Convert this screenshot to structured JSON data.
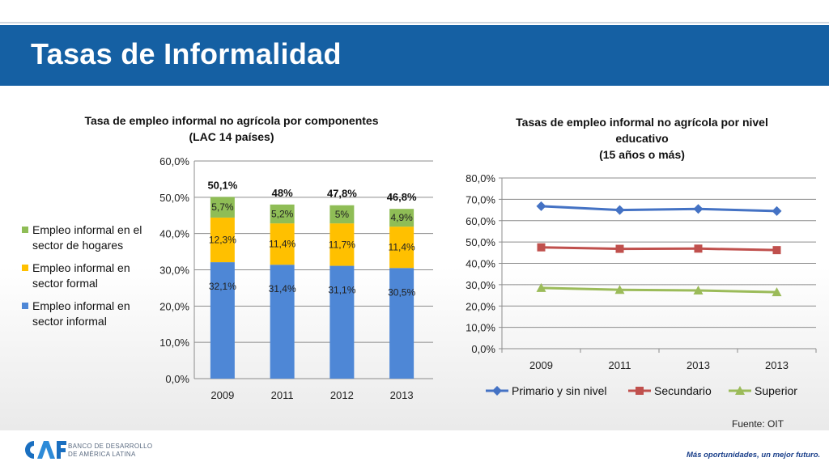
{
  "slide": {
    "title": "Tasas de Informalidad",
    "source": "Fuente: OIT",
    "brand": {
      "line1": "BANCO DE DESARROLLO",
      "line2": "DE AMÉRICA LATINA"
    },
    "slogan": "Más oportunidades, un mejor futuro."
  },
  "colors": {
    "header_bg": "#1560a3",
    "bar_informal_sector": "#4e87d6",
    "bar_formal_sector": "#ffc000",
    "bar_households": "#8fbd56",
    "line_primary": "#4472c4",
    "line_secondary": "#c0504d",
    "line_tertiary": "#9bbb59"
  },
  "chart_data": [
    {
      "type": "bar",
      "stacked": true,
      "title": "Tasa de empleo informal no agrícola por componentes",
      "subtitle": "(LAC 14 países)",
      "categories": [
        "2009",
        "2011",
        "2012",
        "2013"
      ],
      "series": [
        {
          "name": "Empleo informal en sector informal",
          "values": [
            32.1,
            31.4,
            31.1,
            30.5
          ],
          "labels": [
            "32,1%",
            "31,4%",
            "31,1%",
            "30,5%"
          ]
        },
        {
          "name": "Empleo informal en sector formal",
          "values": [
            12.3,
            11.4,
            11.7,
            11.4
          ],
          "labels": [
            "12,3%",
            "11,4%",
            "11,7%",
            "11,4%"
          ]
        },
        {
          "name": "Empleo informal en el sector de hogares",
          "values": [
            5.7,
            5.2,
            5.0,
            4.9
          ],
          "labels": [
            "5,7%",
            "5,2%",
            "5%",
            "4,9%"
          ]
        }
      ],
      "legend_lines": [
        [
          "Empleo informal en el",
          "sector de hogares"
        ],
        [
          "Empleo informal en",
          "sector formal"
        ],
        [
          "Empleo informal en",
          "sector informal"
        ]
      ],
      "totals": [
        "50,1%",
        "48%",
        "47,8%",
        "46,8%"
      ],
      "ylim": [
        0,
        60
      ],
      "yticks": [
        "0,0%",
        "10,0%",
        "20,0%",
        "30,0%",
        "40,0%",
        "50,0%",
        "60,0%"
      ],
      "legend": "left"
    },
    {
      "type": "line",
      "title_lines": [
        "Tasas de empleo informal no agrícola por nivel",
        "educativo",
        "(15 años o más)"
      ],
      "categories": [
        "2009",
        "2011",
        "2013",
        "2013"
      ],
      "series": [
        {
          "name": "Primario y sin nivel",
          "values": [
            66.8,
            65.0,
            65.5,
            64.5
          ]
        },
        {
          "name": "Secundario",
          "values": [
            47.5,
            46.8,
            46.9,
            46.2
          ]
        },
        {
          "name": "Superior",
          "values": [
            28.5,
            27.6,
            27.3,
            26.5
          ]
        }
      ],
      "ylim": [
        0,
        80
      ],
      "yticks": [
        "0,0%",
        "10,0%",
        "20,0%",
        "30,0%",
        "40,0%",
        "50,0%",
        "60,0%",
        "70,0%",
        "80,0%"
      ],
      "legend": "bottom"
    }
  ]
}
